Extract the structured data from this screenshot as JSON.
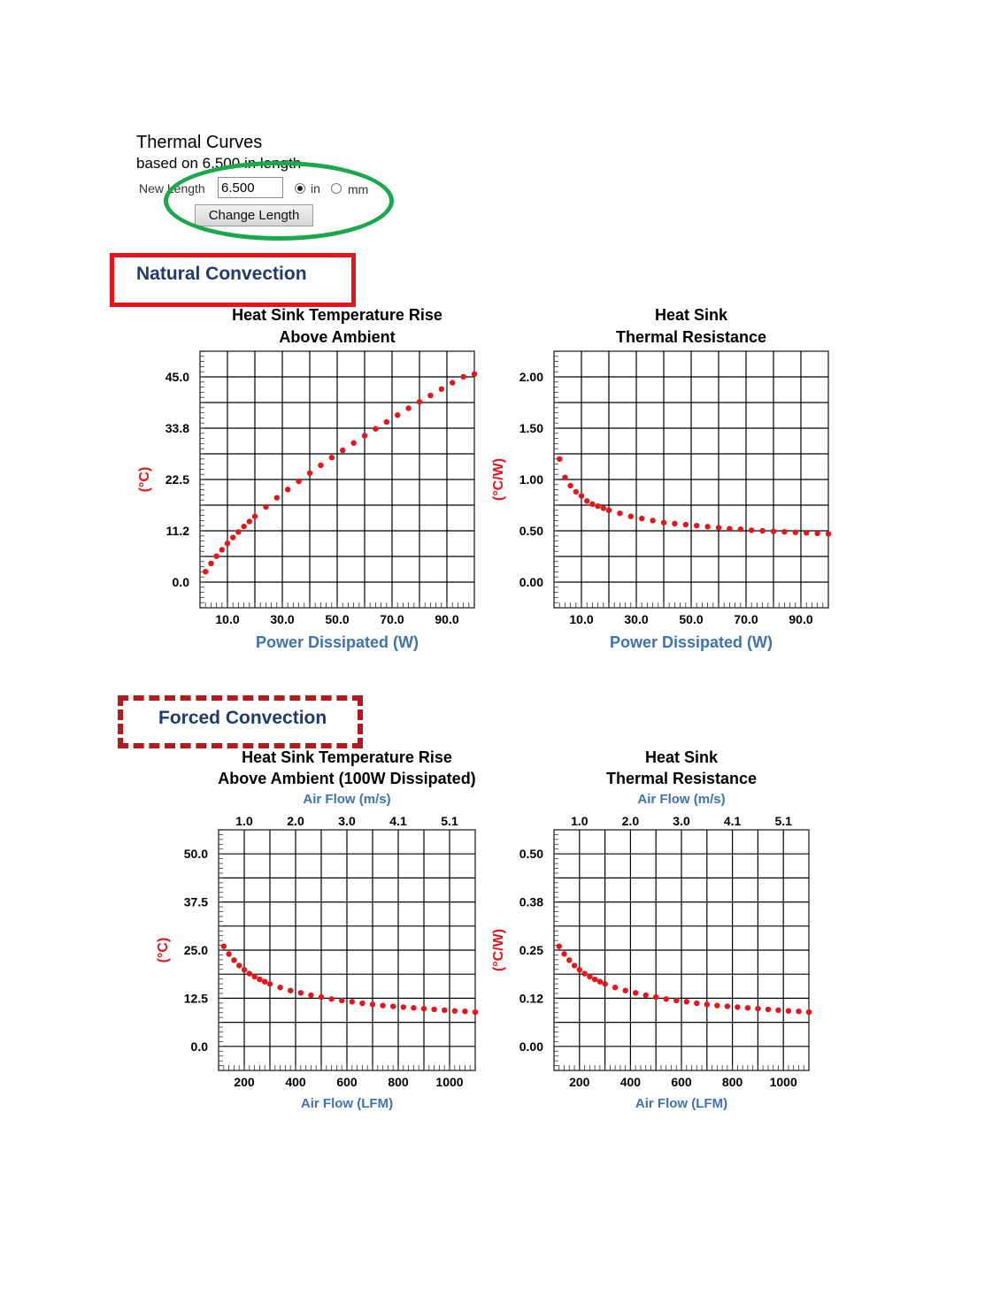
{
  "header": {
    "title": "Thermal Curves",
    "subtitle": "based on 6.500 in length",
    "length_label": "New Length",
    "length_value": "6.500",
    "unit_in": "in",
    "unit_mm": "mm",
    "selected_unit": "in",
    "change_button": "Change Length"
  },
  "sections": {
    "natural": "Natural Convection",
    "forced": "Forced Convection"
  },
  "colors": {
    "data": "#e8141c",
    "axis_label_blue": "#3f72b0",
    "y_label_red": "#e8141c",
    "section_text": "#1f3b6e",
    "highlight_oval": "#19a84a",
    "highlight_box": "#e8141c",
    "highlight_dashed": "#b01c1c"
  },
  "chart_data": [
    {
      "id": "nat-temp",
      "type": "scatter",
      "title": [
        "Heat Sink Temperature Rise",
        "Above Ambient"
      ],
      "xlabel": "Power Dissipated (W)",
      "ylabel": "(°C)",
      "xlim": [
        0,
        100
      ],
      "ylim": [
        -5.6,
        50.6
      ],
      "xticks": [
        "10.0",
        "30.0",
        "50.0",
        "70.0",
        "90.0"
      ],
      "xtick_values": [
        10,
        30,
        50,
        70,
        90
      ],
      "yticks": [
        "0.0",
        "11.2",
        "22.5",
        "33.8",
        "45.0"
      ],
      "ytick_values": [
        0,
        11.25,
        22.5,
        33.75,
        45
      ],
      "grid": true,
      "series": [
        {
          "x": [
            2,
            4,
            6,
            8,
            10,
            12,
            14,
            16,
            18,
            20,
            24,
            28,
            32,
            36,
            40,
            44,
            48,
            52,
            56,
            60,
            64,
            68,
            72,
            76,
            80,
            84,
            88,
            92,
            96,
            100
          ],
          "y": [
            2.3,
            4.1,
            5.7,
            7.1,
            8.5,
            9.8,
            11.0,
            12.2,
            13.3,
            14.4,
            16.5,
            18.5,
            20.3,
            22.1,
            23.9,
            25.6,
            27.3,
            28.9,
            30.5,
            32.1,
            33.6,
            35.1,
            36.6,
            38.1,
            39.5,
            40.9,
            42.3,
            43.7,
            45.0,
            45.6
          ]
        }
      ]
    },
    {
      "id": "nat-res",
      "type": "scatter",
      "title": [
        "Heat Sink",
        "Thermal Resistance"
      ],
      "xlabel": "Power Dissipated (W)",
      "ylabel": "(°C/W)",
      "xlim": [
        0,
        100
      ],
      "ylim": [
        -0.25,
        2.25
      ],
      "xticks": [
        "10.0",
        "30.0",
        "50.0",
        "70.0",
        "90.0"
      ],
      "xtick_values": [
        10,
        30,
        50,
        70,
        90
      ],
      "yticks": [
        "0.00",
        "0.50",
        "1.00",
        "1.50",
        "2.00"
      ],
      "ytick_values": [
        0,
        0.5,
        1.0,
        1.5,
        2.0
      ],
      "grid": true,
      "series": [
        {
          "x": [
            2,
            4,
            6,
            8,
            10,
            12,
            14,
            16,
            18,
            20,
            24,
            28,
            32,
            36,
            40,
            44,
            48,
            52,
            56,
            60,
            64,
            68,
            72,
            76,
            80,
            84,
            88,
            92,
            96,
            100
          ],
          "y": [
            1.2,
            1.02,
            0.94,
            0.88,
            0.84,
            0.79,
            0.76,
            0.74,
            0.72,
            0.7,
            0.67,
            0.64,
            0.62,
            0.6,
            0.58,
            0.57,
            0.56,
            0.55,
            0.54,
            0.53,
            0.52,
            0.515,
            0.505,
            0.5,
            0.495,
            0.49,
            0.485,
            0.48,
            0.475,
            0.47
          ]
        }
      ]
    },
    {
      "id": "forced-temp",
      "type": "scatter",
      "title": [
        "Heat Sink Temperature Rise",
        "Above Ambient (100W Dissipated)"
      ],
      "top_axis_label": "Air Flow (m/s)",
      "top_ticks": [
        "1.0",
        "2.0",
        "3.0",
        "4.1",
        "5.1"
      ],
      "xlabel": "Air Flow (LFM)",
      "ylabel": "(°C)",
      "xlim": [
        100,
        1100
      ],
      "ylim": [
        -6.25,
        56.25
      ],
      "xticks": [
        "200",
        "400",
        "600",
        "800",
        "1000"
      ],
      "xtick_values": [
        200,
        400,
        600,
        800,
        1000
      ],
      "yticks": [
        "0.0",
        "12.5",
        "25.0",
        "37.5",
        "50.0"
      ],
      "ytick_values": [
        0,
        12.5,
        25,
        37.5,
        50
      ],
      "grid": true,
      "series": [
        {
          "x": [
            120,
            140,
            160,
            180,
            200,
            220,
            240,
            260,
            280,
            300,
            340,
            380,
            420,
            460,
            500,
            540,
            580,
            620,
            660,
            700,
            740,
            780,
            820,
            860,
            900,
            940,
            980,
            1020,
            1060,
            1100
          ],
          "y": [
            26.0,
            24.0,
            22.4,
            21.0,
            19.9,
            18.9,
            18.1,
            17.4,
            16.8,
            16.2,
            15.3,
            14.5,
            13.9,
            13.3,
            12.8,
            12.3,
            11.9,
            11.6,
            11.2,
            10.9,
            10.6,
            10.4,
            10.2,
            10.0,
            9.8,
            9.6,
            9.4,
            9.2,
            9.1,
            8.9
          ]
        }
      ]
    },
    {
      "id": "forced-res",
      "type": "scatter",
      "title": [
        "Heat Sink",
        "Thermal Resistance"
      ],
      "top_axis_label": "Air Flow (m/s)",
      "top_ticks": [
        "1.0",
        "2.0",
        "3.0",
        "4.1",
        "5.1"
      ],
      "xlabel": "Air Flow (LFM)",
      "ylabel": "(°C/W)",
      "xlim": [
        100,
        1100
      ],
      "ylim": [
        -0.0625,
        0.5625
      ],
      "xticks": [
        "200",
        "400",
        "600",
        "800",
        "1000"
      ],
      "xtick_values": [
        200,
        400,
        600,
        800,
        1000
      ],
      "yticks": [
        "0.00",
        "0.12",
        "0.25",
        "0.38",
        "0.50"
      ],
      "ytick_values": [
        0,
        0.125,
        0.25,
        0.375,
        0.5
      ],
      "grid": true,
      "series": [
        {
          "x": [
            120,
            140,
            160,
            180,
            200,
            220,
            240,
            260,
            280,
            300,
            340,
            380,
            420,
            460,
            500,
            540,
            580,
            620,
            660,
            700,
            740,
            780,
            820,
            860,
            900,
            940,
            980,
            1020,
            1060,
            1100
          ],
          "y": [
            0.26,
            0.24,
            0.224,
            0.21,
            0.199,
            0.189,
            0.181,
            0.174,
            0.168,
            0.162,
            0.153,
            0.145,
            0.139,
            0.133,
            0.128,
            0.123,
            0.119,
            0.116,
            0.112,
            0.109,
            0.106,
            0.104,
            0.102,
            0.1,
            0.098,
            0.096,
            0.094,
            0.092,
            0.091,
            0.089
          ]
        }
      ]
    }
  ]
}
